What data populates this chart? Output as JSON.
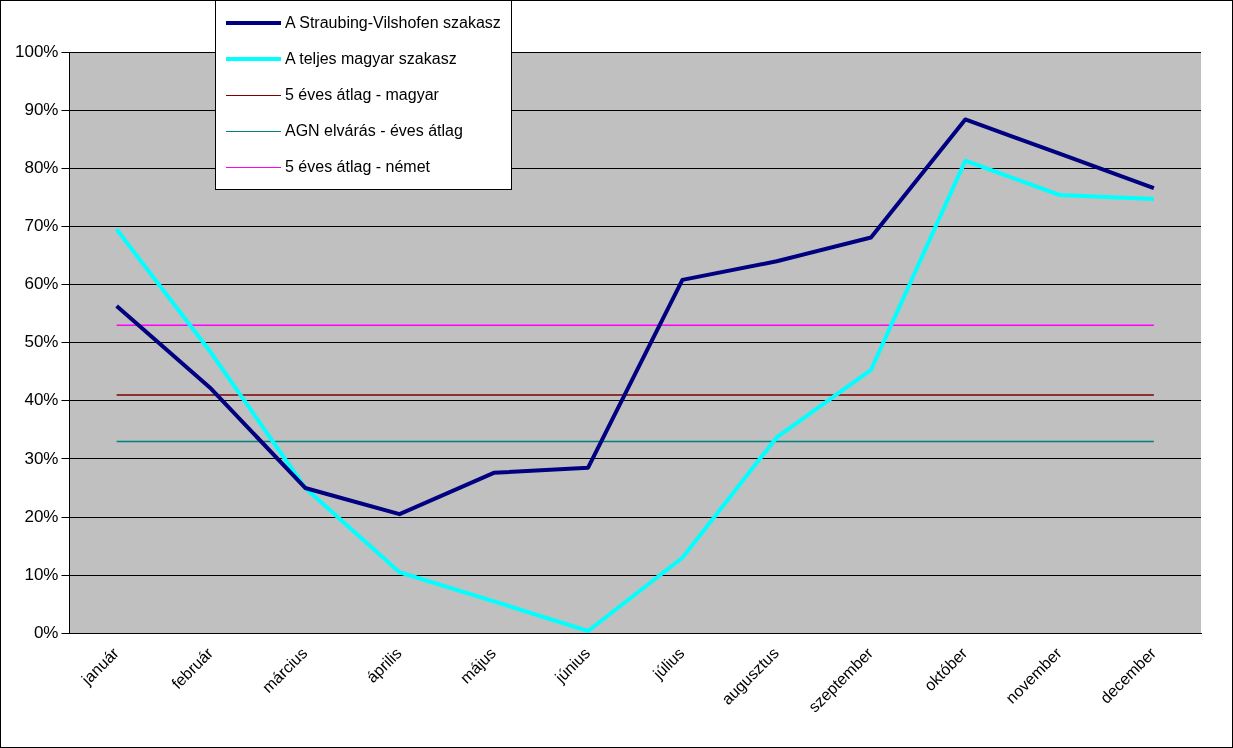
{
  "chart_data": {
    "type": "line",
    "categories": [
      "január",
      "február",
      "március",
      "április",
      "május",
      "június",
      "július",
      "augusztus",
      "szeptember",
      "október",
      "november",
      "december"
    ],
    "series": [
      {
        "name": "A Straubing-Vilshofen szakasz",
        "color": "#000080",
        "values": [
          56.3,
          42.1,
          25,
          20.5,
          27.6,
          28.5,
          60.8,
          64,
          68.1,
          88.4,
          82.5,
          76.6
        ]
      },
      {
        "name": "A teljes magyar szakasz",
        "color": "#00ffff",
        "values": [
          69.5,
          48.3,
          25,
          10.5,
          5.5,
          0.4,
          13,
          33.7,
          45.3,
          81.3,
          75.4,
          74.7
        ]
      },
      {
        "name": "5 éves átlag - magyar",
        "color": "#800000",
        "values": [
          41,
          41,
          41,
          41,
          41,
          41,
          41,
          41,
          41,
          41,
          41,
          41
        ]
      },
      {
        "name": "AGN elvárás - éves átlag",
        "color": "#008080",
        "values": [
          33,
          33,
          33,
          33,
          33,
          33,
          33,
          33,
          33,
          33,
          33,
          33
        ]
      },
      {
        "name": "5 éves átlag - német",
        "color": "#ff00ff",
        "values": [
          53,
          53,
          53,
          53,
          53,
          53,
          53,
          53,
          53,
          53,
          53,
          53
        ]
      }
    ],
    "ylim": [
      0,
      100
    ],
    "yticks": [
      {
        "value": 0,
        "label": "0%"
      },
      {
        "value": 10,
        "label": "10%"
      },
      {
        "value": 20,
        "label": "20%"
      },
      {
        "value": 30,
        "label": "30%"
      },
      {
        "value": 40,
        "label": "40%"
      },
      {
        "value": 50,
        "label": "50%"
      },
      {
        "value": 60,
        "label": "60%"
      },
      {
        "value": 70,
        "label": "70%"
      },
      {
        "value": 80,
        "label": "80%"
      },
      {
        "value": 90,
        "label": "90%"
      },
      {
        "value": 100,
        "label": "100%"
      }
    ],
    "grid": "y",
    "legend": "top left",
    "marker": "none",
    "line_style": "solid"
  }
}
